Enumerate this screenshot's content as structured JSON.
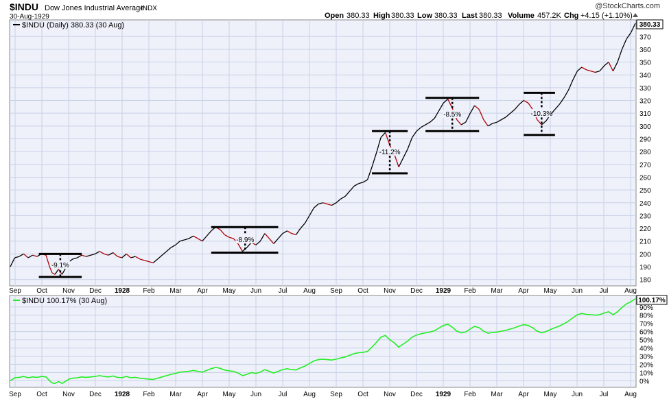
{
  "header": {
    "ticker": "$INDU",
    "name": "Dow Jones Industrial Average",
    "exchange": "INDX",
    "date": "30-Aug-1929",
    "watermark": "@StockCharts.com",
    "quote": {
      "open_label": "Open",
      "open": "380.33",
      "high_label": "High",
      "high": "380.33",
      "low_label": "Low",
      "low": "380.33",
      "last_label": "Last",
      "last": "380.33",
      "volume_label": "Volume",
      "volume": "457.2K",
      "chg_label": "Chg",
      "chg": "+4.15 (+1.10%)"
    }
  },
  "colors": {
    "panel_bg": "#eef0fa",
    "grid": "#c8d2e6",
    "price_up": "#000000",
    "price_down": "#b00000",
    "pct_line": "#22ee22"
  },
  "chart_data": [
    {
      "type": "line",
      "legend": "$INDU (Daily) 380.33 (30 Aug)",
      "last_label": "380.33",
      "y_ticks": [
        180,
        190,
        200,
        210,
        220,
        230,
        240,
        250,
        260,
        270,
        280,
        290,
        300,
        310,
        320,
        330,
        340,
        350,
        360,
        370
      ],
      "ylim": [
        175,
        383
      ],
      "x_ticks": [
        "Sep",
        "Oct",
        "Nov",
        "Dec",
        "1928",
        "Feb",
        "Mar",
        "Apr",
        "May",
        "Jun",
        "Jul",
        "Aug",
        "Sep",
        "Oct",
        "Nov",
        "Dec",
        "1929",
        "Feb",
        "Mar",
        "Apr",
        "May",
        "Jun",
        "Jul",
        "Aug"
      ],
      "series": [
        {
          "values": [
            [
              0,
              190
            ],
            [
              0.5,
              197
            ],
            [
              1,
              198
            ],
            [
              1.5,
              200
            ],
            [
              2,
              197
            ],
            [
              2.5,
              199
            ],
            [
              3,
              198
            ],
            [
              3.5,
              200
            ],
            [
              4,
              199
            ],
            [
              4.4,
              190
            ],
            [
              4.7,
              185
            ],
            [
              5,
              184
            ],
            [
              5.4,
              188
            ],
            [
              5.8,
              184
            ],
            [
              6.2,
              189
            ],
            [
              6.6,
              194
            ],
            [
              7,
              196
            ],
            [
              7.5,
              197
            ],
            [
              8,
              199
            ],
            [
              8.5,
              198
            ],
            [
              9,
              199
            ],
            [
              9.5,
              200
            ],
            [
              10,
              202
            ],
            [
              10.5,
              200
            ],
            [
              11,
              199
            ],
            [
              11.5,
              201
            ],
            [
              12,
              198
            ],
            [
              12.5,
              197
            ],
            [
              13,
              200
            ],
            [
              13.5,
              197
            ],
            [
              14,
              198
            ],
            [
              14.5,
              196
            ],
            [
              15,
              195
            ],
            [
              15.5,
              194
            ],
            [
              16,
              193
            ],
            [
              16.5,
              196
            ],
            [
              17,
              199
            ],
            [
              17.5,
              202
            ],
            [
              18,
              205
            ],
            [
              18.5,
              207
            ],
            [
              19,
              210
            ],
            [
              19.5,
              211
            ],
            [
              20,
              212
            ],
            [
              20.5,
              214
            ],
            [
              21,
              212
            ],
            [
              21.5,
              210
            ],
            [
              22,
              214
            ],
            [
              22.5,
              218
            ],
            [
              23,
              221
            ],
            [
              23.5,
              219
            ],
            [
              24,
              215
            ],
            [
              24.5,
              213
            ],
            [
              25,
              212
            ],
            [
              25.5,
              208
            ],
            [
              26,
              202
            ],
            [
              26.5,
              205
            ],
            [
              27,
              209
            ],
            [
              27.5,
              207
            ],
            [
              28,
              210
            ],
            [
              28.5,
              216
            ],
            [
              29,
              212
            ],
            [
              29.5,
              208
            ],
            [
              30,
              212
            ],
            [
              30.5,
              216
            ],
            [
              31,
              218
            ],
            [
              31.5,
              216
            ],
            [
              32,
              215
            ],
            [
              32.5,
              220
            ],
            [
              33,
              224
            ],
            [
              33.5,
              230
            ],
            [
              34,
              236
            ],
            [
              34.5,
              239
            ],
            [
              35,
              240
            ],
            [
              35.5,
              239
            ],
            [
              36,
              238
            ],
            [
              36.5,
              240
            ],
            [
              37,
              243
            ],
            [
              37.5,
              245
            ],
            [
              38,
              249
            ],
            [
              38.5,
              253
            ],
            [
              39,
              255
            ],
            [
              39.5,
              256
            ],
            [
              40,
              258
            ],
            [
              40.5,
              268
            ],
            [
              41,
              279
            ],
            [
              41.5,
              291
            ],
            [
              42,
              295
            ],
            [
              42.5,
              285
            ],
            [
              43,
              278
            ],
            [
              43.5,
              268
            ],
            [
              44,
              275
            ],
            [
              44.5,
              282
            ],
            [
              45,
              291
            ],
            [
              45.5,
              296
            ],
            [
              46,
              299
            ],
            [
              46.5,
              301
            ],
            [
              47,
              303
            ],
            [
              47.5,
              306
            ],
            [
              48,
              312
            ],
            [
              48.5,
              318
            ],
            [
              49,
              321
            ],
            [
              49.5,
              314
            ],
            [
              50,
              305
            ],
            [
              50.5,
              301
            ],
            [
              51,
              303
            ],
            [
              51.5,
              310
            ],
            [
              52,
              316
            ],
            [
              52.5,
              313
            ],
            [
              53,
              305
            ],
            [
              53.5,
              300
            ],
            [
              54,
              302
            ],
            [
              54.5,
              303
            ],
            [
              55,
              305
            ],
            [
              55.5,
              307
            ],
            [
              56,
              310
            ],
            [
              56.5,
              313
            ],
            [
              57,
              317
            ],
            [
              57.5,
              320
            ],
            [
              58,
              318
            ],
            [
              58.5,
              313
            ],
            [
              59,
              305
            ],
            [
              59.5,
              301
            ],
            [
              60,
              304
            ],
            [
              60.5,
              309
            ],
            [
              61,
              313
            ],
            [
              61.5,
              317
            ],
            [
              62,
              322
            ],
            [
              62.5,
              328
            ],
            [
              63,
              336
            ],
            [
              63.5,
              343
            ],
            [
              64,
              346
            ],
            [
              64.5,
              344
            ],
            [
              65,
              343
            ],
            [
              65.5,
              342
            ],
            [
              66,
              343
            ],
            [
              66.5,
              347
            ],
            [
              67,
              350
            ],
            [
              67.5,
              343
            ],
            [
              68,
              350
            ],
            [
              68.5,
              360
            ],
            [
              69,
              368
            ],
            [
              69.5,
              373
            ],
            [
              70,
              380.33
            ]
          ]
        }
      ],
      "ranges": [
        {
          "top": 200,
          "bottom": 182,
          "pct": "-9.1%"
        },
        {
          "top": 221,
          "bottom": 201,
          "pct": "-8.9%"
        },
        {
          "top": 296,
          "bottom": 263,
          "pct": "-11.2%"
        },
        {
          "top": 322,
          "bottom": 296,
          "pct": "-8.5%"
        },
        {
          "top": 326,
          "bottom": 293,
          "pct": "-10.3%"
        }
      ]
    },
    {
      "type": "line",
      "legend": "$INDU 100.17% (30 Aug)",
      "last_label": "100.17%",
      "y_ticks": [
        "0%",
        "10%",
        "20%",
        "30%",
        "40%",
        "50%",
        "60%",
        "70%",
        "80%",
        "90%"
      ],
      "ylim": [
        -8,
        104
      ],
      "x_ticks": [
        "Sep",
        "Oct",
        "Nov",
        "Dec",
        "1928",
        "Feb",
        "Mar",
        "Apr",
        "May",
        "Jun",
        "Jul",
        "Aug",
        "Sep",
        "Oct",
        "Nov",
        "Dec",
        "1929",
        "Feb",
        "Mar",
        "Apr",
        "May",
        "Jun",
        "Jul",
        "Aug"
      ]
    }
  ]
}
